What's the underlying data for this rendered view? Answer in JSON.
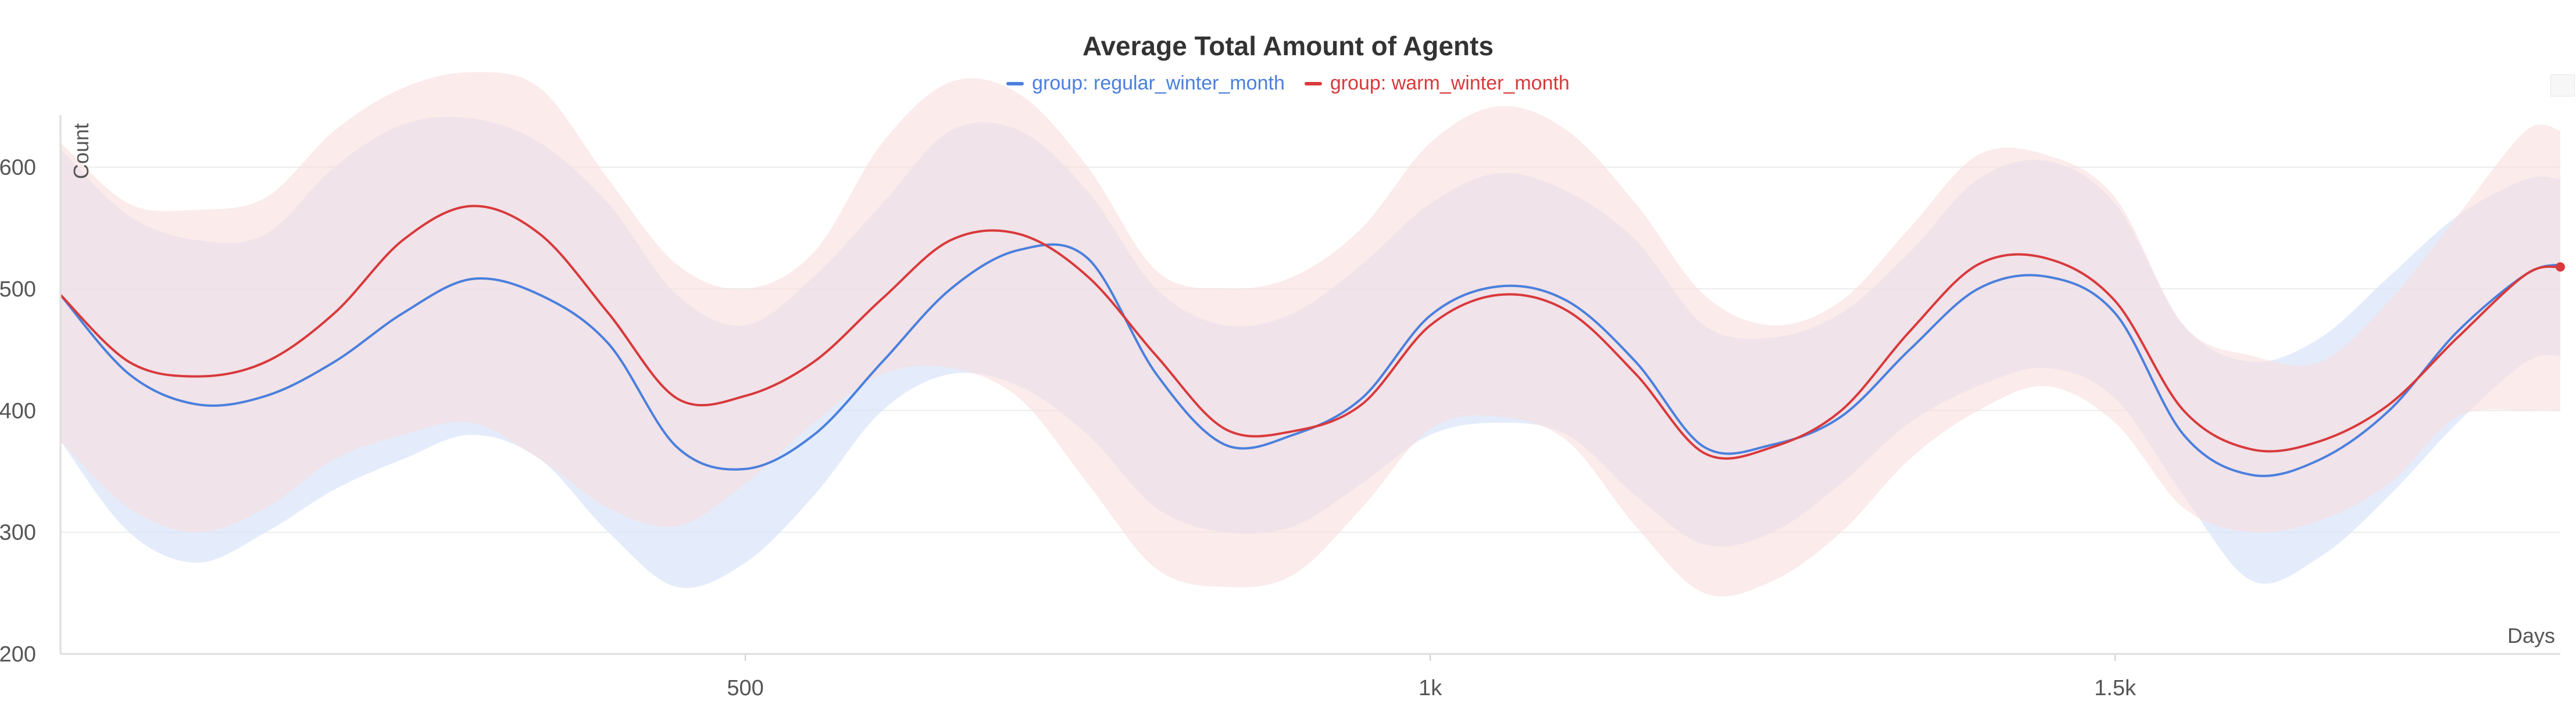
{
  "chart_data": {
    "type": "line",
    "title": "Average Total Amount of Agents",
    "xlabel": "Days",
    "ylabel": "Count",
    "xlim": [
      0,
      1825
    ],
    "ylim": [
      200,
      680
    ],
    "x_ticks": [
      500,
      1000,
      1500
    ],
    "x_tick_labels": [
      "500",
      "1k",
      "1.5k"
    ],
    "y_ticks": [
      200,
      300,
      400,
      500,
      600
    ],
    "y_tick_labels": [
      "200",
      "300",
      "400",
      "500",
      "600"
    ],
    "grid": true,
    "legend_position": "top-center",
    "x": [
      0,
      50,
      100,
      150,
      200,
      250,
      300,
      350,
      400,
      450,
      500,
      550,
      600,
      650,
      700,
      750,
      800,
      850,
      900,
      950,
      1000,
      1050,
      1100,
      1150,
      1200,
      1250,
      1300,
      1350,
      1400,
      1450,
      1500,
      1550,
      1600,
      1650,
      1700,
      1750,
      1800,
      1825
    ],
    "series": [
      {
        "name": "group: regular_winter_month",
        "color": "#4a7fdd",
        "band_color": "#dbe6fa",
        "values": [
          495,
          430,
          405,
          412,
          440,
          480,
          508,
          495,
          455,
          370,
          352,
          380,
          440,
          500,
          532,
          525,
          430,
          372,
          380,
          410,
          478,
          502,
          490,
          440,
          370,
          372,
          395,
          450,
          500,
          510,
          480,
          380,
          347,
          360,
          400,
          465,
          512,
          520
        ],
        "lower": [
          375,
          300,
          275,
          300,
          335,
          360,
          380,
          360,
          300,
          255,
          275,
          330,
          400,
          430,
          420,
          380,
          320,
          300,
          305,
          340,
          380,
          390,
          380,
          330,
          290,
          300,
          340,
          390,
          420,
          435,
          410,
          330,
          260,
          280,
          330,
          390,
          440,
          445
        ],
        "upper": [
          615,
          560,
          540,
          545,
          600,
          635,
          640,
          620,
          570,
          495,
          470,
          510,
          570,
          630,
          630,
          580,
          500,
          470,
          480,
          520,
          570,
          595,
          580,
          540,
          470,
          460,
          480,
          530,
          590,
          605,
          570,
          470,
          440,
          460,
          510,
          560,
          590,
          590
        ]
      },
      {
        "name": "group: warm_winter_month",
        "color": "#d8393b",
        "band_color": "#f8dede",
        "values": [
          495,
          440,
          428,
          440,
          480,
          540,
          568,
          545,
          480,
          410,
          412,
          440,
          492,
          540,
          545,
          510,
          445,
          385,
          383,
          405,
          470,
          495,
          482,
          430,
          365,
          370,
          400,
          465,
          520,
          525,
          490,
          400,
          368,
          375,
          405,
          460,
          512,
          518
        ],
        "lower": [
          375,
          320,
          300,
          320,
          360,
          380,
          390,
          360,
          320,
          305,
          340,
          390,
          430,
          435,
          410,
          340,
          270,
          255,
          265,
          320,
          385,
          395,
          375,
          305,
          250,
          260,
          300,
          360,
          400,
          420,
          390,
          320,
          300,
          310,
          340,
          395,
          400,
          400
        ],
        "upper": [
          620,
          570,
          565,
          575,
          630,
          665,
          678,
          665,
          590,
          520,
          500,
          530,
          620,
          670,
          660,
          600,
          515,
          500,
          510,
          550,
          620,
          650,
          630,
          570,
          495,
          470,
          490,
          550,
          610,
          610,
          575,
          470,
          445,
          440,
          490,
          560,
          630,
          630
        ]
      }
    ]
  }
}
